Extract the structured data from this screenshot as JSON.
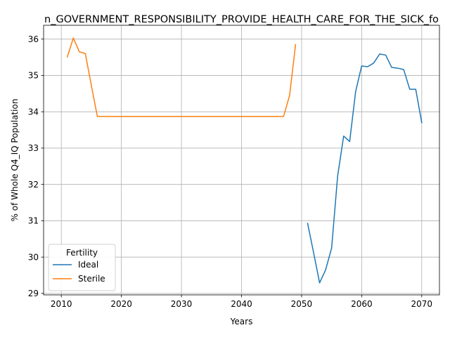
{
  "chart_data": {
    "type": "line",
    "title": "n_GOVERNMENT_RESPONSIBILITY_PROVIDE_HEALTH_CARE_FOR_THE_SICK_fo",
    "xlabel": "Years",
    "ylabel": "% of Whole Q4_IQ Population",
    "xlim": [
      2007.05,
      2072.95
    ],
    "ylim": [
      28.96,
      36.38
    ],
    "xticks": [
      2010,
      2020,
      2030,
      2040,
      2050,
      2060,
      2070
    ],
    "yticks": [
      29,
      30,
      31,
      32,
      33,
      34,
      35,
      36
    ],
    "grid": true,
    "legend": {
      "title": "Fertility",
      "placement": "lower-left"
    },
    "series": [
      {
        "name": "Ideal",
        "color": "#1f77b4",
        "x": [
          2051,
          2052,
          2053,
          2054,
          2055,
          2056,
          2057,
          2058,
          2059,
          2060,
          2061,
          2062,
          2063,
          2064,
          2065,
          2066,
          2067,
          2068,
          2069,
          2070
        ],
        "y": [
          30.93,
          30.12,
          29.29,
          29.65,
          30.25,
          32.23,
          33.33,
          33.18,
          34.56,
          35.26,
          35.24,
          35.34,
          35.59,
          35.56,
          35.22,
          35.2,
          35.16,
          34.62,
          34.62,
          33.7
        ]
      },
      {
        "name": "Sterile",
        "color": "#ff7f0e",
        "x": [
          2011,
          2012,
          2013,
          2014,
          2015,
          2016,
          2017,
          2018,
          2019,
          2020,
          2021,
          2022,
          2023,
          2024,
          2025,
          2026,
          2027,
          2028,
          2029,
          2030,
          2031,
          2032,
          2033,
          2034,
          2035,
          2036,
          2037,
          2038,
          2039,
          2040,
          2041,
          2042,
          2043,
          2044,
          2045,
          2046,
          2047,
          2048,
          2049
        ],
        "y": [
          35.51,
          36.03,
          35.65,
          35.6,
          34.72,
          33.87,
          33.87,
          33.87,
          33.87,
          33.87,
          33.87,
          33.87,
          33.87,
          33.87,
          33.87,
          33.87,
          33.87,
          33.87,
          33.87,
          33.87,
          33.87,
          33.87,
          33.87,
          33.87,
          33.87,
          33.87,
          33.87,
          33.87,
          33.87,
          33.87,
          33.87,
          33.87,
          33.87,
          33.87,
          33.87,
          33.87,
          33.87,
          34.45,
          35.85
        ]
      }
    ]
  }
}
